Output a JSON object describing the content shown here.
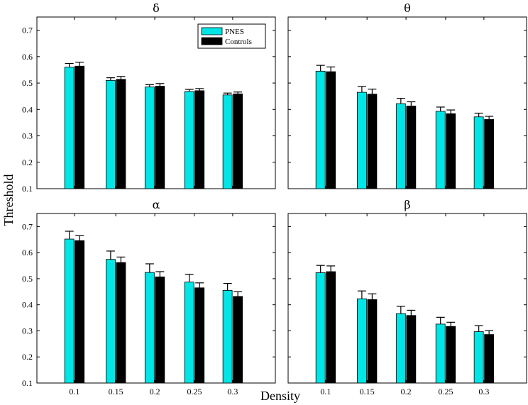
{
  "figure": {
    "ylabel": "Threshold",
    "xlabel": "Density"
  },
  "legend": {
    "entries": [
      {
        "name": "PNES",
        "color": "#00e5e5"
      },
      {
        "name": "Controls",
        "color": "#000000"
      }
    ]
  },
  "chart_data": [
    {
      "type": "bar",
      "title": "δ",
      "categories": [
        "0.1",
        "0.15",
        "0.2",
        "0.25",
        "0.3"
      ],
      "ylim": [
        0.1,
        0.75
      ],
      "yticks": [
        0.1,
        0.2,
        0.3,
        0.4,
        0.5,
        0.6,
        0.7
      ],
      "ytick_labels": [
        "0.1",
        "0.2",
        "0.3",
        "0.4",
        "0.5",
        "0.6",
        "0.7"
      ],
      "show_xticklabels": false,
      "show_yticklabels": true,
      "legend": "top-right",
      "series": [
        {
          "name": "PNES",
          "color": "#00e5e5",
          "values": [
            0.56,
            0.51,
            0.485,
            0.468,
            0.455
          ],
          "errors": [
            0.014,
            0.01,
            0.009,
            0.008,
            0.007
          ]
        },
        {
          "name": "Controls",
          "color": "#000000",
          "values": [
            0.564,
            0.514,
            0.488,
            0.471,
            0.459
          ],
          "errors": [
            0.015,
            0.011,
            0.01,
            0.008,
            0.007
          ]
        }
      ]
    },
    {
      "type": "bar",
      "title": "θ",
      "categories": [
        "0.1",
        "0.15",
        "0.2",
        "0.25",
        "0.3"
      ],
      "ylim": [
        0.1,
        0.75
      ],
      "yticks": [
        0.1,
        0.2,
        0.3,
        0.4,
        0.5,
        0.6,
        0.7
      ],
      "ytick_labels": [
        "0.1",
        "0.2",
        "0.3",
        "0.4",
        "0.5",
        "0.6",
        "0.7"
      ],
      "show_xticklabels": false,
      "show_yticklabels": false,
      "legend": "none",
      "series": [
        {
          "name": "PNES",
          "color": "#00e5e5",
          "values": [
            0.545,
            0.465,
            0.422,
            0.393,
            0.372
          ],
          "errors": [
            0.022,
            0.022,
            0.02,
            0.016,
            0.014
          ]
        },
        {
          "name": "Controls",
          "color": "#000000",
          "values": [
            0.543,
            0.458,
            0.413,
            0.384,
            0.362
          ],
          "errors": [
            0.018,
            0.019,
            0.016,
            0.014,
            0.012
          ]
        }
      ]
    },
    {
      "type": "bar",
      "title": "α",
      "categories": [
        "0.1",
        "0.15",
        "0.2",
        "0.25",
        "0.3"
      ],
      "ylim": [
        0.1,
        0.75
      ],
      "yticks": [
        0.1,
        0.2,
        0.3,
        0.4,
        0.5,
        0.6,
        0.7
      ],
      "ytick_labels": [
        "0.1",
        "0.2",
        "0.3",
        "0.4",
        "0.5",
        "0.6",
        "0.7"
      ],
      "show_xticklabels": true,
      "show_yticklabels": true,
      "legend": "none",
      "series": [
        {
          "name": "PNES",
          "color": "#00e5e5",
          "values": [
            0.652,
            0.574,
            0.524,
            0.487,
            0.455
          ],
          "errors": [
            0.03,
            0.032,
            0.033,
            0.03,
            0.027
          ]
        },
        {
          "name": "Controls",
          "color": "#000000",
          "values": [
            0.646,
            0.562,
            0.507,
            0.465,
            0.432
          ],
          "errors": [
            0.019,
            0.021,
            0.02,
            0.019,
            0.018
          ]
        }
      ]
    },
    {
      "type": "bar",
      "title": "β",
      "categories": [
        "0.1",
        "0.15",
        "0.2",
        "0.25",
        "0.3"
      ],
      "ylim": [
        0.1,
        0.75
      ],
      "yticks": [
        0.1,
        0.2,
        0.3,
        0.4,
        0.5,
        0.6,
        0.7
      ],
      "ytick_labels": [
        "0.1",
        "0.2",
        "0.3",
        "0.4",
        "0.5",
        "0.6",
        "0.7"
      ],
      "show_xticklabels": true,
      "show_yticklabels": false,
      "legend": "none",
      "series": [
        {
          "name": "PNES",
          "color": "#00e5e5",
          "values": [
            0.523,
            0.423,
            0.366,
            0.326,
            0.297
          ],
          "errors": [
            0.028,
            0.03,
            0.028,
            0.026,
            0.023
          ]
        },
        {
          "name": "Controls",
          "color": "#000000",
          "values": [
            0.527,
            0.42,
            0.359,
            0.317,
            0.286
          ],
          "errors": [
            0.022,
            0.022,
            0.02,
            0.016,
            0.015
          ]
        }
      ]
    }
  ]
}
